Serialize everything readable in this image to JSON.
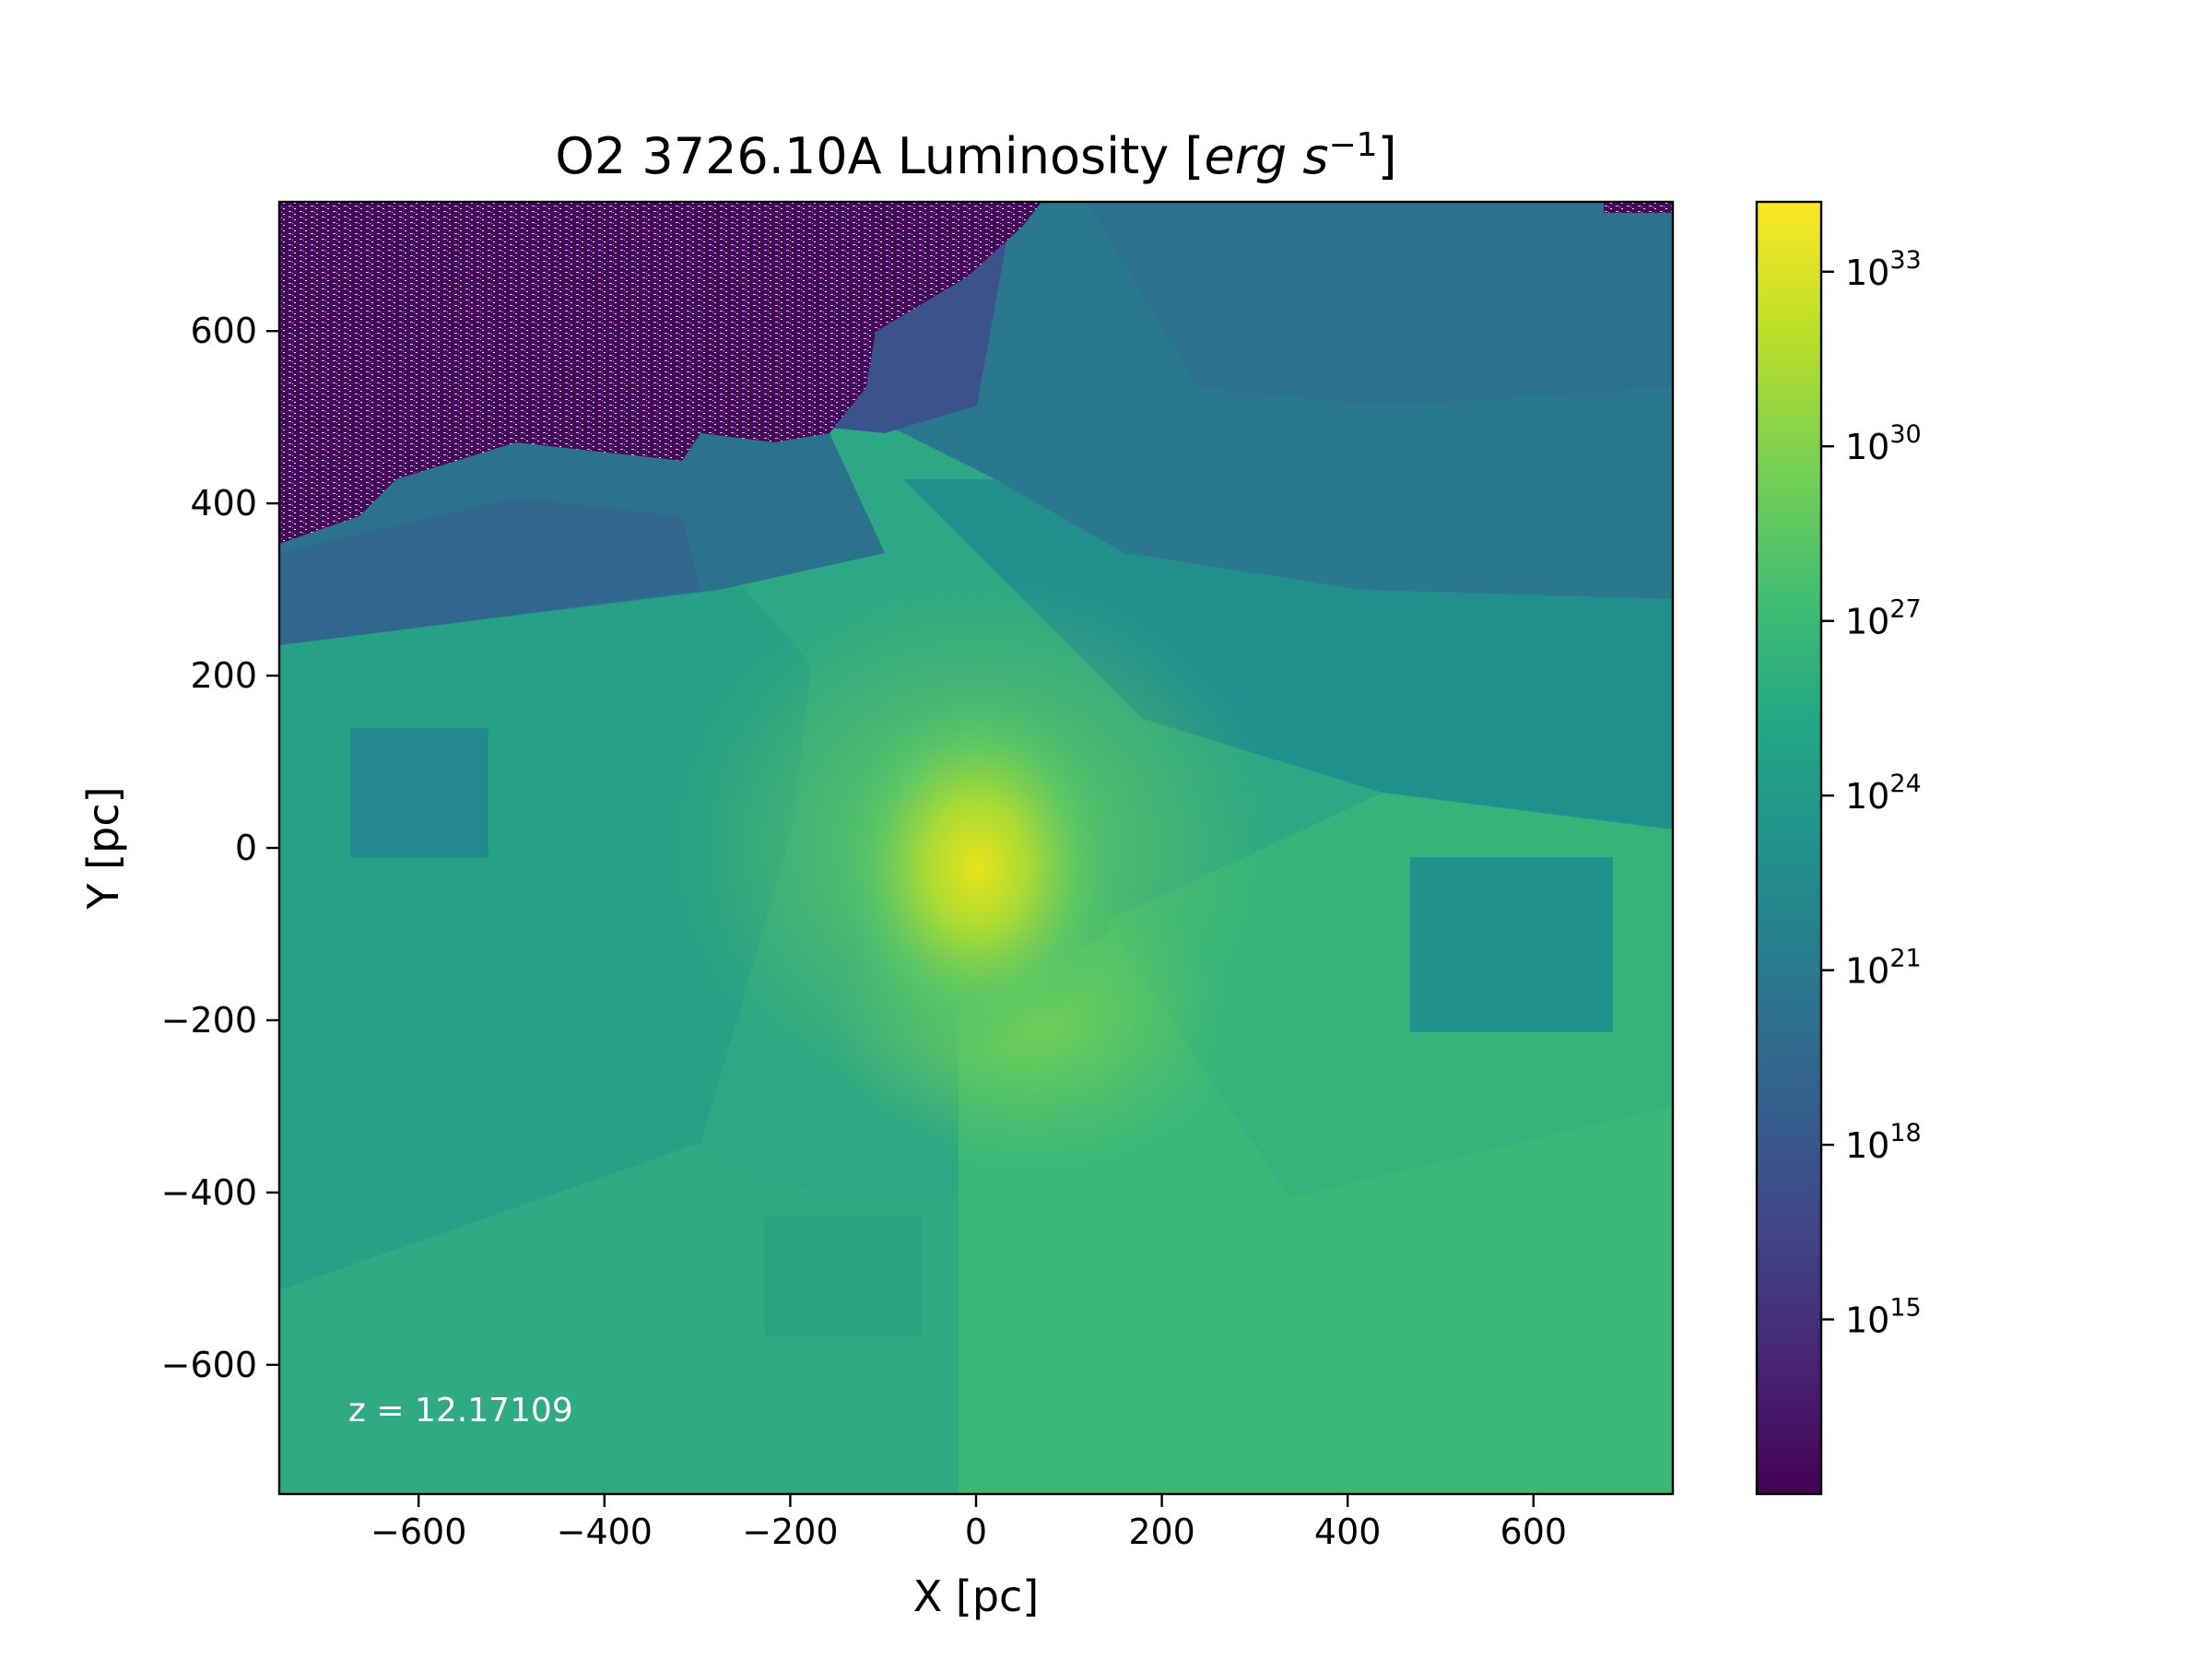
{
  "chart_data": {
    "type": "heatmap",
    "title": {
      "prefix": "O2 3726.10A Luminosity [",
      "unit_base": "erg s",
      "unit_exp": "−1",
      "suffix": "]"
    },
    "xlabel": "X [pc]",
    "ylabel": "Y [pc]",
    "xlim": [
      -750,
      750
    ],
    "ylim": [
      -750,
      750
    ],
    "x_ticks": [
      -600,
      -400,
      -200,
      0,
      200,
      400,
      600
    ],
    "y_ticks": [
      -600,
      -400,
      -200,
      0,
      200,
      400,
      600
    ],
    "x_tick_labels": [
      "−600",
      "−400",
      "−200",
      "0",
      "200",
      "400",
      "600"
    ],
    "y_tick_labels": [
      "−600",
      "−400",
      "−200",
      "0",
      "200",
      "400",
      "600"
    ],
    "annotation": "z = 12.17109",
    "colormap": "viridis",
    "colorbar": {
      "scale": "log",
      "range_log10": [
        12,
        34.2
      ],
      "ticks_log10": [
        15,
        18,
        21,
        24,
        27,
        30,
        33
      ],
      "tick_labels": [
        "10",
        "10",
        "10",
        "10",
        "10",
        "10",
        "10"
      ],
      "tick_exponents": [
        "15",
        "18",
        "21",
        "24",
        "27",
        "30",
        "33"
      ]
    },
    "features": [
      {
        "region": "central source near (0, 0)",
        "log10_luminosity": 32
      },
      {
        "region": "inner shell structure, |X|,|Y| < 150 pc",
        "log10_luminosity": 30
      },
      {
        "region": "outer diffuse field",
        "log10_luminosity": 26
      },
      {
        "region": "upper-right sector",
        "log10_luminosity": 21
      },
      {
        "region": "top band Y > 500 pc",
        "log10_luminosity": 18
      },
      {
        "region": "upper-left noisy corner",
        "log10_luminosity": 13
      }
    ]
  }
}
